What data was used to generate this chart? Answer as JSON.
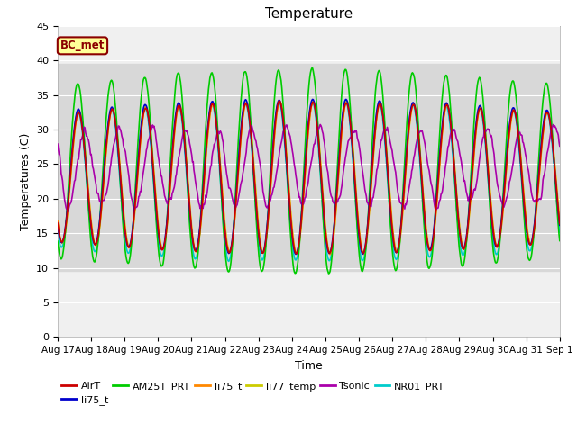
{
  "title": "Temperature",
  "xlabel": "Time",
  "ylabel": "Temperatures (C)",
  "ylim": [
    0,
    45
  ],
  "yticks": [
    0,
    5,
    10,
    15,
    20,
    25,
    30,
    35,
    40,
    45
  ],
  "background_color": "#ffffff",
  "plot_bg_color": "#f0f0f0",
  "shaded_band": [
    9.5,
    39.5
  ],
  "shaded_band_color": "#d8d8d8",
  "legend_label": "BC_met",
  "series": {
    "AirT": {
      "color": "#cc0000",
      "lw": 1.2
    },
    "li75_t_1": {
      "color": "#0000cc",
      "lw": 1.2
    },
    "AM25T_PRT": {
      "color": "#00cc00",
      "lw": 1.2
    },
    "li75_t_2": {
      "color": "#ff8800",
      "lw": 1.2
    },
    "li77_temp": {
      "color": "#cccc00",
      "lw": 1.2
    },
    "Tsonic": {
      "color": "#aa00aa",
      "lw": 1.2
    },
    "NR01_PRT": {
      "color": "#00cccc",
      "lw": 1.2
    }
  },
  "legend_entries": [
    {
      "label": "AirT",
      "color": "#cc0000"
    },
    {
      "label": "li75_t",
      "color": "#0000cc"
    },
    {
      "label": "AM25T_PRT",
      "color": "#00cc00"
    },
    {
      "label": "li75_t",
      "color": "#ff8800"
    },
    {
      "label": "li77_temp",
      "color": "#cccc00"
    },
    {
      "label": "Tsonic",
      "color": "#aa00aa"
    },
    {
      "label": "NR01_PRT",
      "color": "#00cccc"
    }
  ],
  "num_points": 720
}
